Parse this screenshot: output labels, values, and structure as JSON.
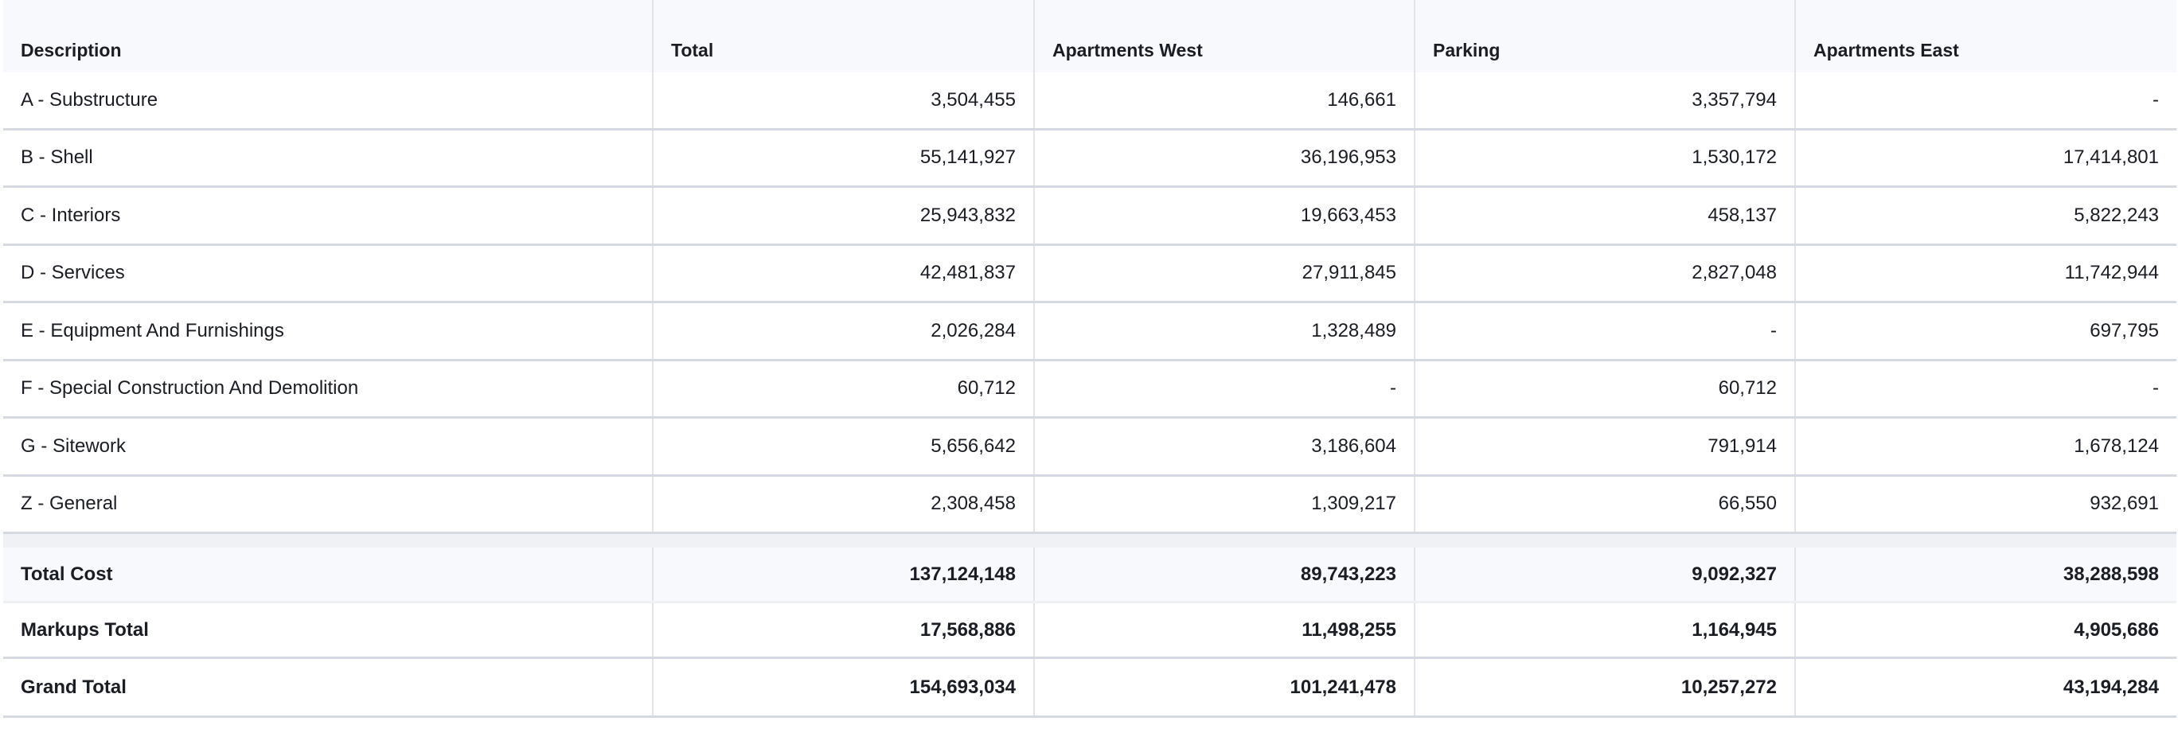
{
  "columns": [
    "Description",
    "Total",
    "Apartments West",
    "Parking",
    "Apartments East"
  ],
  "rows": [
    {
      "description": "A - Substructure",
      "values": [
        "3,504,455",
        "146,661",
        "3,357,794",
        "-"
      ]
    },
    {
      "description": "B - Shell",
      "values": [
        "55,141,927",
        "36,196,953",
        "1,530,172",
        "17,414,801"
      ]
    },
    {
      "description": "C - Interiors",
      "values": [
        "25,943,832",
        "19,663,453",
        "458,137",
        "5,822,243"
      ]
    },
    {
      "description": "D - Services",
      "values": [
        "42,481,837",
        "27,911,845",
        "2,827,048",
        "11,742,944"
      ]
    },
    {
      "description": "E - Equipment And Furnishings",
      "values": [
        "2,026,284",
        "1,328,489",
        "-",
        "697,795"
      ]
    },
    {
      "description": "F - Special Construction And Demolition",
      "values": [
        "60,712",
        "-",
        "60,712",
        "-"
      ]
    },
    {
      "description": "G - Sitework",
      "values": [
        "5,656,642",
        "3,186,604",
        "791,914",
        "1,678,124"
      ]
    },
    {
      "description": "Z - General",
      "values": [
        "2,308,458",
        "1,309,217",
        "66,550",
        "932,691"
      ]
    }
  ],
  "totals": [
    {
      "description": "Total Cost",
      "values": [
        "137,124,148",
        "89,743,223",
        "9,092,327",
        "38,288,598"
      ]
    },
    {
      "description": "Markups Total",
      "values": [
        "17,568,886",
        "11,498,255",
        "1,164,945",
        "4,905,686"
      ]
    },
    {
      "description": "Grand Total",
      "values": [
        "154,693,034",
        "101,241,478",
        "10,257,272",
        "43,194,284"
      ]
    }
  ]
}
